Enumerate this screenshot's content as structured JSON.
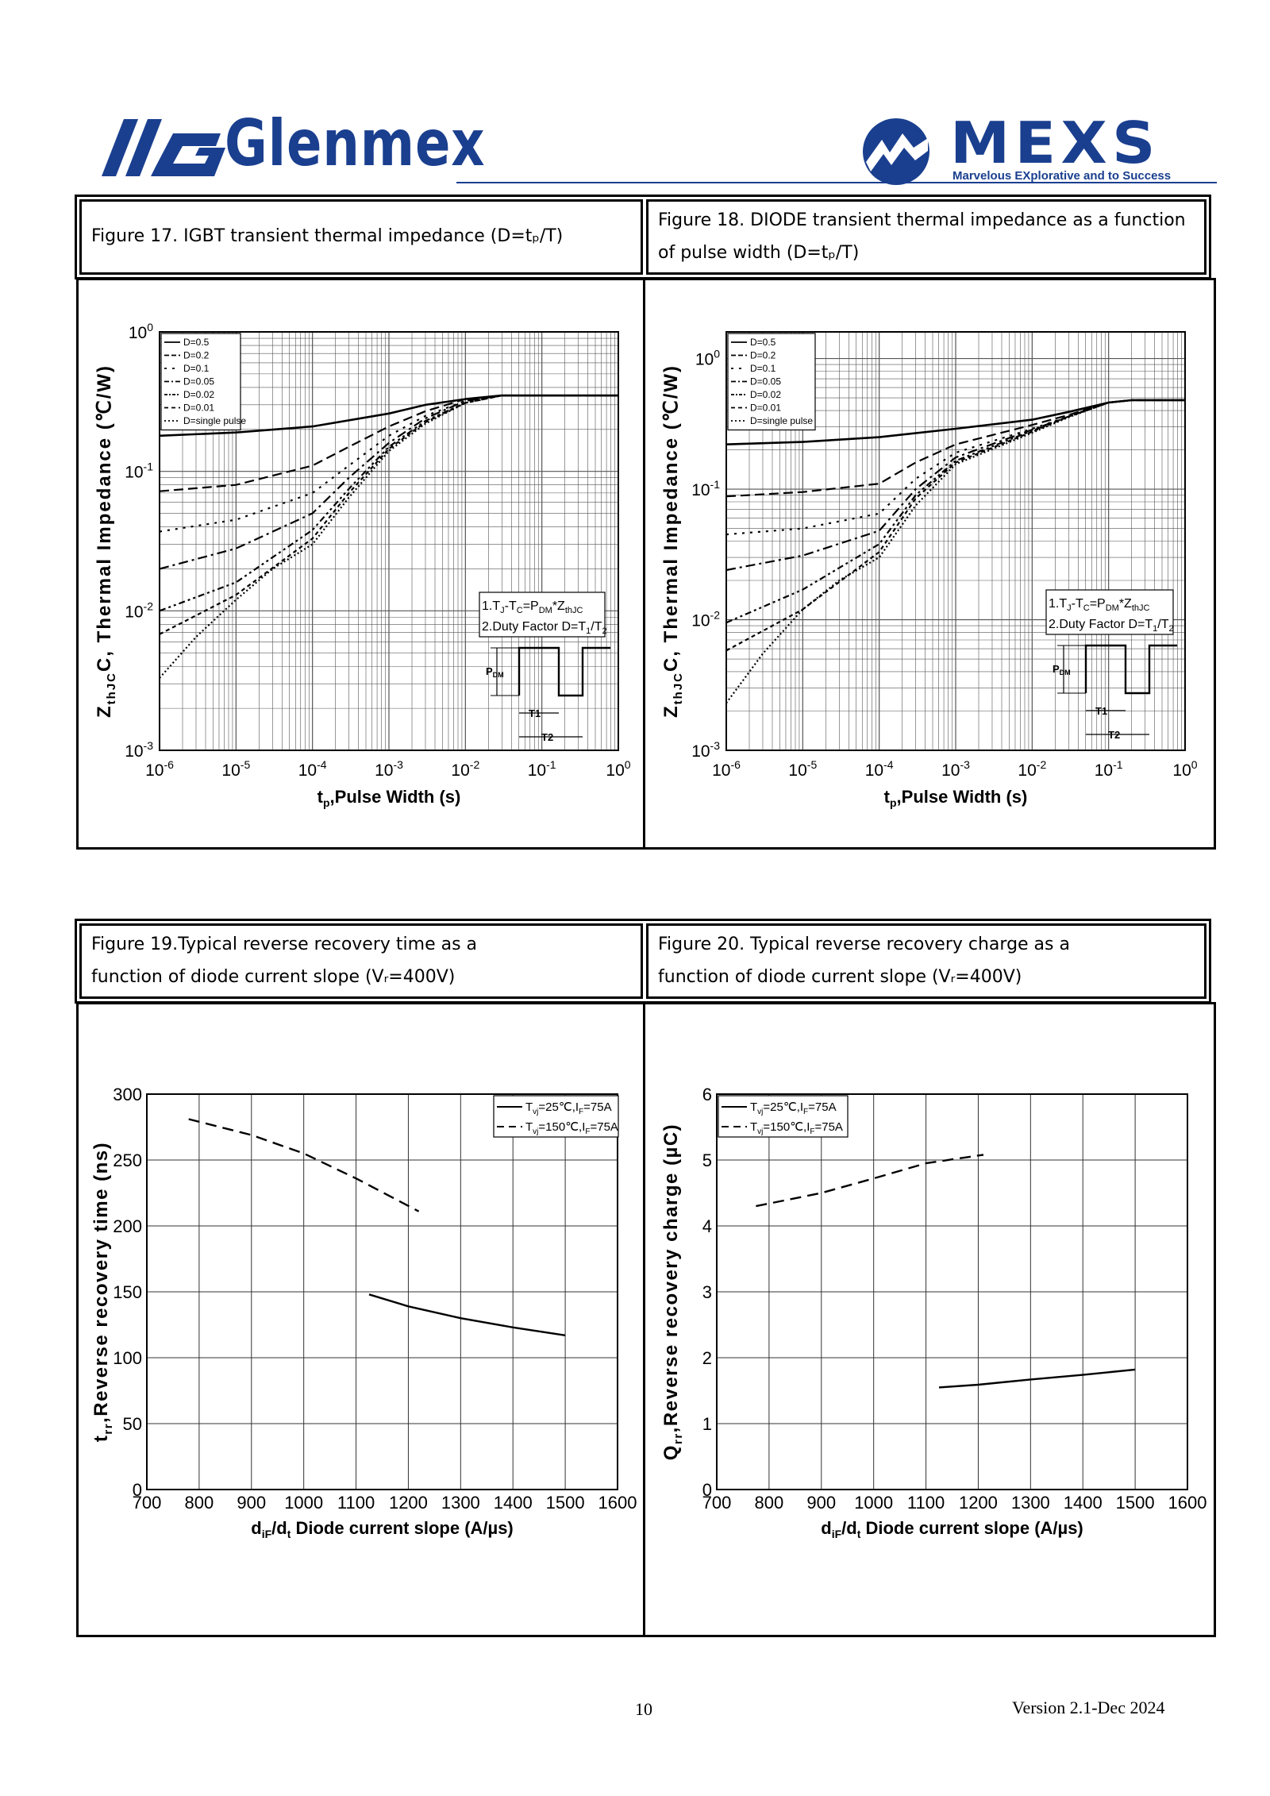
{
  "header": {
    "left_brand": "Glenmex",
    "right_brand": "MEXS",
    "right_tagline": "Marvelous EXplorative and to Success"
  },
  "captions": {
    "fig17": "Figure 17. IGBT transient thermal impedance (D=tₚ/T)",
    "fig18_line1": "Figure 18. DIODE transient thermal impedance as a function",
    "fig18_line2": "of pulse width (D=tₚ/T)",
    "fig19_line1": "Figure 19.Typical reverse recovery time as a",
    "fig19_line2": "function of diode current slope (Vᵣ=400V)",
    "fig20_line1": "Figure 20. Typical reverse recovery charge as a",
    "fig20_line2": "function of diode current slope (Vᵣ=400V)"
  },
  "footer": {
    "page": "10",
    "version": "Version 2.1-Dec 2024"
  },
  "colors": {
    "brand": "#1a3f8f",
    "ink": "#000000"
  },
  "chart_data": [
    {
      "id": "fig17",
      "type": "line",
      "xscale": "log",
      "yscale": "log",
      "xlim": [
        1e-06,
        1
      ],
      "ylim": [
        0.001,
        1
      ],
      "xticks": [
        "10-6",
        "10-5",
        "10-4",
        "10-3",
        "10-2",
        "10-1",
        "100"
      ],
      "yticks": [
        "10-3",
        "10-2",
        "10-1",
        "100"
      ],
      "xlabel": "tp,Pulse Width (s)",
      "ylabel": "ZthJC, Thermal Impedance (℃/W)",
      "legend": [
        "D=0.5",
        "D=0.2",
        "D=0.1",
        "D=0.05",
        "D=0.02",
        "D=0.01",
        "D=single pulse"
      ],
      "legend_position": "top-left",
      "annotation": [
        "1.TJ-TC=PDM*ZthJC",
        "2.Duty Factor D=T1/T2"
      ],
      "pulse_labels": [
        "PDM",
        "T1",
        "T2"
      ],
      "series": [
        {
          "name": "D=0.5",
          "x": [
            1e-06,
            1e-05,
            0.0001,
            0.001,
            0.003,
            0.01,
            0.03,
            0.1,
            1
          ],
          "y": [
            0.18,
            0.19,
            0.21,
            0.26,
            0.3,
            0.33,
            0.35,
            0.35,
            0.35
          ]
        },
        {
          "name": "D=0.2",
          "x": [
            1e-06,
            1e-05,
            0.0001,
            0.0003,
            0.001,
            0.003,
            0.01,
            0.03,
            0.1,
            1
          ],
          "y": [
            0.072,
            0.08,
            0.11,
            0.15,
            0.21,
            0.27,
            0.33,
            0.35,
            0.35,
            0.35
          ]
        },
        {
          "name": "D=0.1",
          "x": [
            1e-06,
            1e-05,
            0.0001,
            0.0003,
            0.001,
            0.003,
            0.01,
            0.03,
            0.1,
            1
          ],
          "y": [
            0.037,
            0.045,
            0.07,
            0.11,
            0.18,
            0.25,
            0.32,
            0.35,
            0.35,
            0.35
          ]
        },
        {
          "name": "D=0.05",
          "x": [
            1e-06,
            1e-05,
            0.0001,
            0.0003,
            0.001,
            0.003,
            0.01,
            0.03,
            0.1,
            1
          ],
          "y": [
            0.02,
            0.028,
            0.05,
            0.09,
            0.16,
            0.24,
            0.32,
            0.35,
            0.35,
            0.35
          ]
        },
        {
          "name": "D=0.02",
          "x": [
            1e-06,
            1e-05,
            0.0001,
            0.0003,
            0.001,
            0.003,
            0.01,
            0.03,
            0.1,
            1
          ],
          "y": [
            0.01,
            0.016,
            0.038,
            0.075,
            0.15,
            0.23,
            0.31,
            0.35,
            0.35,
            0.35
          ]
        },
        {
          "name": "D=0.01",
          "x": [
            1e-06,
            1e-05,
            0.0001,
            0.0003,
            0.001,
            0.003,
            0.01,
            0.03,
            0.1,
            1
          ],
          "y": [
            0.0068,
            0.013,
            0.033,
            0.07,
            0.145,
            0.225,
            0.31,
            0.35,
            0.35,
            0.35
          ]
        },
        {
          "name": "D=single pulse",
          "x": [
            1e-06,
            3e-06,
            1e-05,
            3e-05,
            0.0001,
            0.0003,
            0.001,
            0.003,
            0.01,
            0.03,
            0.1,
            1
          ],
          "y": [
            0.0033,
            0.0065,
            0.012,
            0.02,
            0.03,
            0.065,
            0.14,
            0.22,
            0.31,
            0.35,
            0.35,
            0.35
          ]
        }
      ]
    },
    {
      "id": "fig18",
      "type": "line",
      "xscale": "log",
      "yscale": "log",
      "xlim": [
        1e-06,
        1
      ],
      "ylim": [
        0.001,
        1.6
      ],
      "xticks": [
        "10-6",
        "10-5",
        "10-4",
        "10-3",
        "10-2",
        "10-1",
        "100"
      ],
      "yticks": [
        "10-3",
        "10-2",
        "10-1",
        "100"
      ],
      "xlabel": "tp,Pulse Width (s)",
      "ylabel": "ZthJC, Thermal Impedance (℃/W)",
      "legend": [
        "D=0.5",
        "D=0.2",
        "D=0.1",
        "D=0.05",
        "D=0.02",
        "D=0.01",
        "D=single pulse"
      ],
      "legend_position": "top-left",
      "annotation": [
        "1.TJ-TC=PDM*ZthJC",
        "2.Duty Factor D=T1/T2"
      ],
      "pulse_labels": [
        "PDM",
        "T1",
        "T2"
      ],
      "series": [
        {
          "name": "D=0.5",
          "x": [
            1e-06,
            1e-05,
            0.0001,
            0.001,
            0.01,
            0.03,
            0.1,
            0.2,
            1
          ],
          "y": [
            0.22,
            0.23,
            0.25,
            0.29,
            0.34,
            0.39,
            0.46,
            0.48,
            0.48
          ]
        },
        {
          "name": "D=0.2",
          "x": [
            1e-06,
            1e-05,
            0.0001,
            0.0003,
            0.001,
            0.01,
            0.03,
            0.1,
            0.2,
            1
          ],
          "y": [
            0.088,
            0.095,
            0.11,
            0.16,
            0.22,
            0.31,
            0.37,
            0.46,
            0.48,
            0.48
          ]
        },
        {
          "name": "D=0.1",
          "x": [
            1e-06,
            1e-05,
            0.0001,
            0.0003,
            0.001,
            0.01,
            0.03,
            0.1,
            0.2,
            1
          ],
          "y": [
            0.045,
            0.05,
            0.065,
            0.12,
            0.19,
            0.29,
            0.36,
            0.46,
            0.48,
            0.48
          ]
        },
        {
          "name": "D=0.05",
          "x": [
            1e-06,
            1e-05,
            0.0001,
            0.0003,
            0.001,
            0.01,
            0.03,
            0.1,
            0.2,
            1
          ],
          "y": [
            0.024,
            0.031,
            0.048,
            0.1,
            0.175,
            0.285,
            0.36,
            0.46,
            0.48,
            0.48
          ]
        },
        {
          "name": "D=0.02",
          "x": [
            1e-06,
            1e-05,
            0.0001,
            0.0003,
            0.001,
            0.01,
            0.03,
            0.1,
            0.2,
            1
          ],
          "y": [
            0.0095,
            0.017,
            0.038,
            0.09,
            0.165,
            0.28,
            0.36,
            0.46,
            0.48,
            0.48
          ]
        },
        {
          "name": "D=0.01",
          "x": [
            1e-06,
            1e-05,
            0.0001,
            0.0003,
            0.001,
            0.01,
            0.03,
            0.1,
            0.2,
            1
          ],
          "y": [
            0.0058,
            0.012,
            0.033,
            0.085,
            0.16,
            0.275,
            0.36,
            0.46,
            0.48,
            0.48
          ]
        },
        {
          "name": "D=single pulse",
          "x": [
            1e-06,
            3e-06,
            1e-05,
            3e-05,
            0.0001,
            0.0003,
            0.001,
            0.01,
            0.03,
            0.1,
            0.2,
            1
          ],
          "y": [
            0.0023,
            0.0055,
            0.012,
            0.02,
            0.03,
            0.075,
            0.155,
            0.27,
            0.355,
            0.46,
            0.48,
            0.48
          ]
        }
      ]
    },
    {
      "id": "fig19",
      "type": "line",
      "xlim": [
        700,
        1600
      ],
      "ylim": [
        0,
        300
      ],
      "xticks": [
        700,
        800,
        900,
        1000,
        1100,
        1200,
        1300,
        1400,
        1500,
        1600
      ],
      "yticks": [
        0,
        50,
        100,
        150,
        200,
        250,
        300
      ],
      "xlabel": "diF/dt, Diode current slope (A/µs)",
      "ylabel": "trr,Reverse recovery time (ns)",
      "legend_position": "top-right",
      "series": [
        {
          "name": "Tvj=25℃,IF=75A",
          "style": "solid",
          "x": [
            1125,
            1200,
            1300,
            1400,
            1500
          ],
          "y": [
            148,
            139,
            130,
            123,
            117
          ]
        },
        {
          "name": "Tvj=150℃,IF=75A",
          "style": "dashed",
          "x": [
            780,
            900,
            1000,
            1100,
            1220
          ],
          "y": [
            281,
            269,
            255,
            236,
            211
          ]
        }
      ]
    },
    {
      "id": "fig20",
      "type": "line",
      "xlim": [
        700,
        1600
      ],
      "ylim": [
        0,
        6
      ],
      "xticks": [
        700,
        800,
        900,
        1000,
        1100,
        1200,
        1300,
        1400,
        1500,
        1600
      ],
      "yticks": [
        0,
        1,
        2,
        3,
        4,
        5,
        6
      ],
      "xlabel": "diF/dt, Diode current slope (A/µs)",
      "ylabel": "Qrr,Reverse recovery charge (µC)",
      "legend_position": "top-left",
      "series": [
        {
          "name": "Tvj=25℃,IF=75A",
          "style": "solid",
          "x": [
            1125,
            1200,
            1300,
            1400,
            1500
          ],
          "y": [
            1.55,
            1.59,
            1.67,
            1.74,
            1.82
          ]
        },
        {
          "name": "Tvj=150℃,IF=75A",
          "style": "dashed",
          "x": [
            775,
            900,
            1000,
            1100,
            1210
          ],
          "y": [
            4.3,
            4.5,
            4.72,
            4.95,
            5.08
          ]
        }
      ]
    }
  ]
}
